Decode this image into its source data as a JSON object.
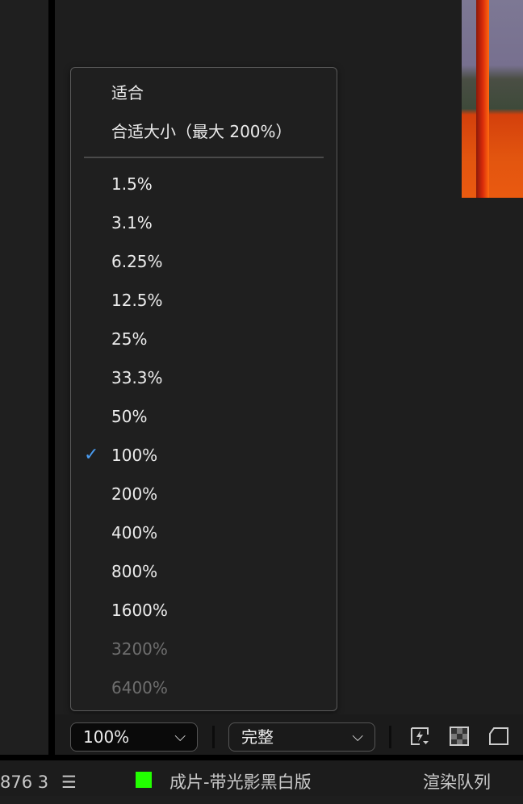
{
  "zoom_menu": {
    "fit_items": [
      "适合",
      "合适大小（最大 200%）"
    ],
    "levels": [
      {
        "label": "1.5%",
        "enabled": true
      },
      {
        "label": "3.1%",
        "enabled": true
      },
      {
        "label": "6.25%",
        "enabled": true
      },
      {
        "label": "12.5%",
        "enabled": true
      },
      {
        "label": "25%",
        "enabled": true
      },
      {
        "label": "33.3%",
        "enabled": true
      },
      {
        "label": "50%",
        "enabled": true
      },
      {
        "label": "100%",
        "enabled": true,
        "checked": true
      },
      {
        "label": "200%",
        "enabled": true
      },
      {
        "label": "400%",
        "enabled": true
      },
      {
        "label": "800%",
        "enabled": true
      },
      {
        "label": "1600%",
        "enabled": true
      },
      {
        "label": "3200%",
        "enabled": false
      },
      {
        "label": "6400%",
        "enabled": false
      }
    ],
    "check_color": "#4a9cf0"
  },
  "toolbar": {
    "zoom_value": "100%",
    "resolution_value": "完整",
    "icons": [
      "fast-preview-icon",
      "transparency-grid-icon",
      "mask-outline-icon"
    ]
  },
  "status": {
    "left_text": "876 3",
    "comp_name": "成片-带光影黑白版",
    "comp_color": "#22ff00",
    "render_queue": "渲染队列"
  }
}
